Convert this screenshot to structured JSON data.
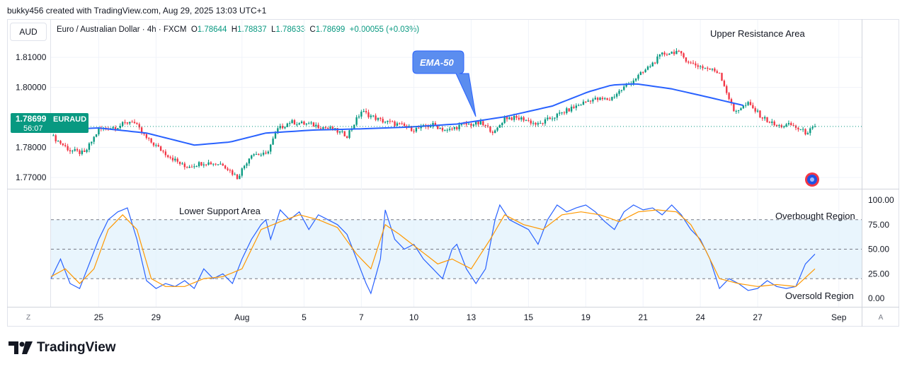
{
  "header": {
    "attribution": "bukky456 created with TradingView.com, Aug 29, 2025 13:03 UTC+1"
  },
  "toolbar": {
    "currency": "AUD",
    "symbol_desc": "Euro / Australian Dollar · 4h · FXCM",
    "o_label": "O",
    "o_value": "1.78644",
    "h_label": "H",
    "h_value": "1.78837",
    "l_label": "L",
    "l_value": "1.78633",
    "c_label": "C",
    "c_value": "1.78699",
    "change": "+0.00055 (+0.03%)"
  },
  "price_tag": {
    "price": "1.78699",
    "symbol": "EURAUD",
    "countdown": "56:07"
  },
  "footer": {
    "brand": "TradingView"
  },
  "corners": {
    "left": "Z",
    "right": "A"
  },
  "colors": {
    "up": "#089981",
    "down": "#f23645",
    "ema": "#2962ff",
    "rsi": "#2962ff",
    "rsi_ma": "#ff9800",
    "band": "#e3f2fd",
    "callout": "#5b8def"
  },
  "chart_data": [
    {
      "type": "candlestick",
      "title": "",
      "timeframe": "4h",
      "x_ticks": [
        "25",
        "29",
        "Aug",
        "5",
        "7",
        "10",
        "13",
        "15",
        "19",
        "21",
        "24",
        "27",
        "Sep"
      ],
      "y_ticks": [
        "1.81000",
        "1.80000",
        "1.79000",
        "1.78000",
        "1.77000"
      ],
      "ylim": [
        1.7665,
        1.8225
      ],
      "series": [
        {
          "name": "EMA-50",
          "type": "line",
          "anchors": [
            [
              0,
              1.7858
            ],
            [
              20,
              1.7865
            ],
            [
              40,
              1.7848
            ],
            [
              60,
              1.7808
            ],
            [
              75,
              1.7818
            ],
            [
              90,
              1.7848
            ],
            [
              110,
              1.7858
            ],
            [
              130,
              1.7862
            ],
            [
              150,
              1.7868
            ],
            [
              170,
              1.7878
            ],
            [
              190,
              1.7902
            ],
            [
              210,
              1.7938
            ],
            [
              225,
              1.7985
            ],
            [
              235,
              1.8008
            ],
            [
              245,
              1.8012
            ],
            [
              260,
              1.7995
            ],
            [
              275,
              1.7968
            ],
            [
              290,
              1.794
            ]
          ]
        }
      ],
      "close_anchors": [
        [
          0,
          1.784
        ],
        [
          8,
          1.779
        ],
        [
          14,
          1.778
        ],
        [
          20,
          1.786
        ],
        [
          28,
          1.787
        ],
        [
          34,
          1.789
        ],
        [
          40,
          1.783
        ],
        [
          48,
          1.778
        ],
        [
          56,
          1.7735
        ],
        [
          64,
          1.775
        ],
        [
          72,
          1.7745
        ],
        [
          78,
          1.77
        ],
        [
          84,
          1.778
        ],
        [
          90,
          1.7775
        ],
        [
          95,
          1.786
        ],
        [
          100,
          1.7885
        ],
        [
          110,
          1.7875
        ],
        [
          118,
          1.786
        ],
        [
          124,
          1.784
        ],
        [
          130,
          1.792
        ],
        [
          138,
          1.789
        ],
        [
          146,
          1.7875
        ],
        [
          152,
          1.786
        ],
        [
          160,
          1.7875
        ],
        [
          166,
          1.7855
        ],
        [
          172,
          1.7875
        ],
        [
          180,
          1.788
        ],
        [
          186,
          1.785
        ],
        [
          190,
          1.79
        ],
        [
          198,
          1.7895
        ],
        [
          204,
          1.7875
        ],
        [
          210,
          1.79
        ],
        [
          218,
          1.793
        ],
        [
          226,
          1.796
        ],
        [
          234,
          1.796
        ],
        [
          240,
          1.8
        ],
        [
          248,
          1.805
        ],
        [
          256,
          1.811
        ],
        [
          262,
          1.812
        ],
        [
          268,
          1.808
        ],
        [
          274,
          1.8065
        ],
        [
          280,
          1.805
        ],
        [
          286,
          1.792
        ],
        [
          292,
          1.7945
        ],
        [
          298,
          1.79
        ],
        [
          304,
          1.787
        ],
        [
          310,
          1.7875
        ],
        [
          316,
          1.785
        ],
        [
          320,
          1.7865
        ]
      ],
      "annotations": [
        "Upper Resistance Area",
        "EMA-50"
      ]
    },
    {
      "type": "line",
      "title": "",
      "y_ticks": [
        "100.00",
        "75.00",
        "50.00",
        "25.00",
        "0.00"
      ],
      "ylim": [
        0,
        100
      ],
      "band": [
        20,
        80
      ],
      "midline": 50,
      "series": [
        {
          "type": "line",
          "role": "rsi",
          "anchors": [
            [
              0,
              20
            ],
            [
              4,
              40
            ],
            [
              8,
              15
            ],
            [
              12,
              10
            ],
            [
              16,
              35
            ],
            [
              20,
              60
            ],
            [
              24,
              80
            ],
            [
              28,
              88
            ],
            [
              32,
              92
            ],
            [
              36,
              60
            ],
            [
              40,
              18
            ],
            [
              44,
              10
            ],
            [
              48,
              15
            ],
            [
              52,
              12
            ],
            [
              56,
              18
            ],
            [
              60,
              10
            ],
            [
              64,
              30
            ],
            [
              68,
              20
            ],
            [
              72,
              25
            ],
            [
              76,
              15
            ],
            [
              80,
              40
            ],
            [
              84,
              60
            ],
            [
              88,
              75
            ],
            [
              90,
              80
            ],
            [
              92,
              60
            ],
            [
              96,
              90
            ],
            [
              100,
              80
            ],
            [
              104,
              88
            ],
            [
              108,
              70
            ],
            [
              112,
              85
            ],
            [
              116,
              80
            ],
            [
              120,
              75
            ],
            [
              124,
              65
            ],
            [
              128,
              40
            ],
            [
              132,
              15
            ],
            [
              134,
              5
            ],
            [
              138,
              40
            ],
            [
              140,
              90
            ],
            [
              144,
              60
            ],
            [
              148,
              50
            ],
            [
              152,
              55
            ],
            [
              156,
              40
            ],
            [
              160,
              30
            ],
            [
              164,
              20
            ],
            [
              168,
              50
            ],
            [
              170,
              55
            ],
            [
              174,
              30
            ],
            [
              178,
              15
            ],
            [
              182,
              30
            ],
            [
              186,
              80
            ],
            [
              188,
              95
            ],
            [
              192,
              80
            ],
            [
              196,
              75
            ],
            [
              200,
              70
            ],
            [
              204,
              55
            ],
            [
              208,
              80
            ],
            [
              212,
              95
            ],
            [
              216,
              88
            ],
            [
              220,
              92
            ],
            [
              224,
              95
            ],
            [
              228,
              88
            ],
            [
              232,
              78
            ],
            [
              236,
              70
            ],
            [
              240,
              88
            ],
            [
              244,
              95
            ],
            [
              248,
              90
            ],
            [
              252,
              92
            ],
            [
              256,
              85
            ],
            [
              260,
              95
            ],
            [
              264,
              85
            ],
            [
              268,
              70
            ],
            [
              272,
              60
            ],
            [
              276,
              40
            ],
            [
              280,
              10
            ],
            [
              284,
              20
            ],
            [
              288,
              15
            ],
            [
              292,
              8
            ],
            [
              296,
              10
            ],
            [
              300,
              18
            ],
            [
              304,
              12
            ],
            [
              308,
              10
            ],
            [
              312,
              12
            ],
            [
              316,
              35
            ],
            [
              320,
              45
            ]
          ]
        },
        {
          "type": "line",
          "role": "ma",
          "anchors": [
            [
              0,
              22
            ],
            [
              6,
              30
            ],
            [
              12,
              15
            ],
            [
              18,
              30
            ],
            [
              24,
              70
            ],
            [
              30,
              85
            ],
            [
              36,
              70
            ],
            [
              42,
              20
            ],
            [
              48,
              12
            ],
            [
              56,
              12
            ],
            [
              64,
              20
            ],
            [
              72,
              22
            ],
            [
              80,
              30
            ],
            [
              88,
              70
            ],
            [
              96,
              78
            ],
            [
              104,
              85
            ],
            [
              112,
              80
            ],
            [
              120,
              72
            ],
            [
              128,
              45
            ],
            [
              134,
              30
            ],
            [
              140,
              75
            ],
            [
              146,
              65
            ],
            [
              154,
              50
            ],
            [
              162,
              35
            ],
            [
              168,
              40
            ],
            [
              176,
              30
            ],
            [
              184,
              60
            ],
            [
              190,
              85
            ],
            [
              198,
              75
            ],
            [
              206,
              70
            ],
            [
              214,
              85
            ],
            [
              222,
              88
            ],
            [
              230,
              85
            ],
            [
              238,
              78
            ],
            [
              246,
              88
            ],
            [
              254,
              90
            ],
            [
              262,
              88
            ],
            [
              268,
              75
            ],
            [
              274,
              50
            ],
            [
              280,
              20
            ],
            [
              288,
              15
            ],
            [
              296,
              12
            ],
            [
              304,
              14
            ],
            [
              312,
              12
            ],
            [
              320,
              30
            ]
          ]
        }
      ],
      "annotations": [
        "Lower Support Area",
        "Overbought Region",
        "Oversold Region"
      ]
    }
  ]
}
